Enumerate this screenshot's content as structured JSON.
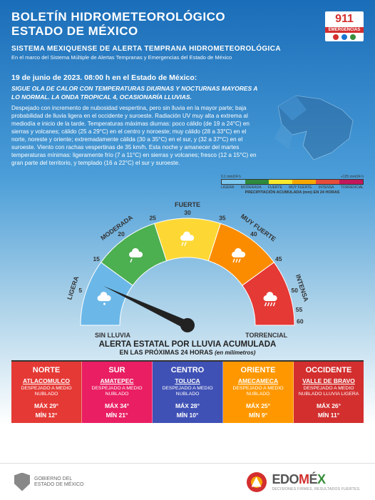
{
  "header": {
    "title_l1": "BOLETÍN HIDROMETEOROLÓGICO",
    "title_l2": "ESTADO DE MÉXICO",
    "badge": {
      "number": "911",
      "label": "EMERGENCIAS",
      "dots": [
        "#d32f2f",
        "#1976d2",
        "#388e3c"
      ]
    },
    "subtitle": "SISTEMA MEXIQUENSE DE ALERTA TEMPRANA HIDROMETEOROLÓGICA",
    "subtext": "En el marco del Sistema Múltiple de Alertas Tempranas y Emergencias del Estado de México"
  },
  "date_line": "19 de junio de 2023. 08:00 h en el Estado de México:",
  "body": {
    "headline": "SIGUE OLA DE CALOR CON TEMPERATURAS DIURNAS Y NOCTURNAS MAYORES A LO NORMAL. LA ONDA TROPICAL 4, OCASIONARÍA LLUVIAS.",
    "text": "Despejado con incremento de nubosidad vespertina, pero sin lluvia en la mayor parte; baja probabilidad de lluvia ligera en el occidente y suroeste. Radiación UV muy alta a extrema al mediodía e inicio de la tarde. Temperaturas máximas diurnas: poco cálido (de 19 a 24°C) en sierras y volcanes; cálido (25 a 29°C) en el centro y noroeste; muy cálido (28 a 33°C) en el norte, noreste y oriente; extremadamente cálida (30 a 35°C) en el sur, y (32 a 37°C) en el suroeste. Viento con rachas vespertinas de 35 km/h. Esta noche y amanecer del martes temperaturas mínimas: ligeramente frío (7 a 11°C) en sierras y volcanes; fresco (12 a 15°C) en gran parte del territorio, y templado (16 a 22°C) el sur y suroeste."
  },
  "legend": {
    "ticks_left": "0.1 mm/24 h",
    "ticks_right": "+125 mm/24 h",
    "labels": [
      "LIGERA",
      "MODERADA",
      "FUERTE",
      "MUY FUERTE",
      "INTENSA",
      "TORRENCIAL"
    ],
    "colors": [
      "#7cc6ee",
      "#2e8b3d",
      "#f7e92e",
      "#f7a800",
      "#e74c3c",
      "#c2185b"
    ],
    "caption": "PRECIPITACIÓN ACUMULADA (mm) EN 24 HORAS"
  },
  "gauge": {
    "segments": [
      {
        "color": "#6bb8e8",
        "label": "LIGERA"
      },
      {
        "color": "#4caf50",
        "label": "MODERADA"
      },
      {
        "color": "#fdd835",
        "label": "FUERTE"
      },
      {
        "color": "#fb8c00",
        "label": "MUY FUERTE"
      },
      {
        "color": "#e53935",
        "label": "INTENSA"
      }
    ],
    "ticks": [
      "0.1",
      "5",
      "15",
      "20",
      "25",
      "30",
      "35",
      "40",
      "45",
      "50",
      "55",
      "60",
      "+125"
    ],
    "left_sub": "SIN LLUVIA",
    "right_sub": "TORRENCIAL",
    "pointer_angle": -155
  },
  "alert": {
    "title": "ALERTA ESTATAL POR LLUVIA ACUMULADA",
    "sub": "EN LAS PRÓXIMAS 24 HORAS",
    "unit": "(en milímetros)"
  },
  "regions": [
    {
      "name": "NORTE",
      "color": "#e53935",
      "city": "ATLACOMULCO",
      "cond": "DESPEJADO A MEDIO NUBLADO",
      "max": "MÁX 29°",
      "min": "MÍN 12°"
    },
    {
      "name": "SUR",
      "color": "#e91e63",
      "city": "AMATEPEC",
      "cond": "DESPEJADO A MEDIO NUBLADO",
      "max": "MÁX 34°",
      "min": "MÍN 21°"
    },
    {
      "name": "CENTRO",
      "color": "#3f51b5",
      "city": "TOLUCA",
      "cond": "DESPEJADO A MEDIO NUBLADO",
      "max": "MÁX 28°",
      "min": "MÍN 10°"
    },
    {
      "name": "ORIENTE",
      "color": "#ff9800",
      "city": "AMECAMECA",
      "cond": "DESPEJADO A MEDIO NUBLADO",
      "max": "MÁX 25°",
      "min": "MÍN 9°"
    },
    {
      "name": "OCCIDENTE",
      "color": "#d32f2f",
      "city": "VALLE DE BRAVO",
      "cond": "DESPEJADO A MEDIO NUBLADO LLUVIA LIGERA",
      "max": "MÁX 26°",
      "min": "MÍN 11°"
    }
  ],
  "footer": {
    "gov_l1": "GOBIERNO DEL",
    "gov_l2": "ESTADO DE MÉXICO",
    "brand_pre": "EDO",
    "brand_m": "M",
    "brand_e": "É",
    "brand_x": "X",
    "tagline": "DECISIONES FIRMES, RESULTADOS FUERTES."
  }
}
